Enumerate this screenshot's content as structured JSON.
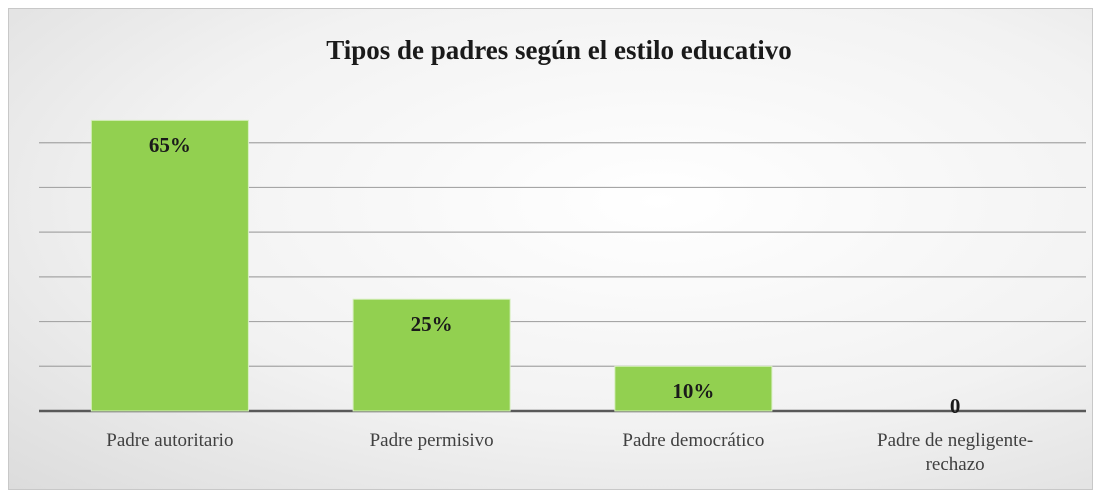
{
  "chart_data": {
    "type": "bar",
    "title": "Tipos de padres según el estilo educativo",
    "categories": [
      "Padre autoritario",
      "Padre permisivo",
      "Padre democrático",
      "Padre de negligente-rechazo"
    ],
    "values": [
      65,
      25,
      10,
      0
    ],
    "value_labels": [
      "65%",
      "25%",
      "10%",
      "0"
    ],
    "color": "#92d050",
    "ylim": [
      0,
      70
    ],
    "yticks": [
      0,
      10,
      20,
      30,
      40,
      50,
      60
    ],
    "grid": true
  }
}
